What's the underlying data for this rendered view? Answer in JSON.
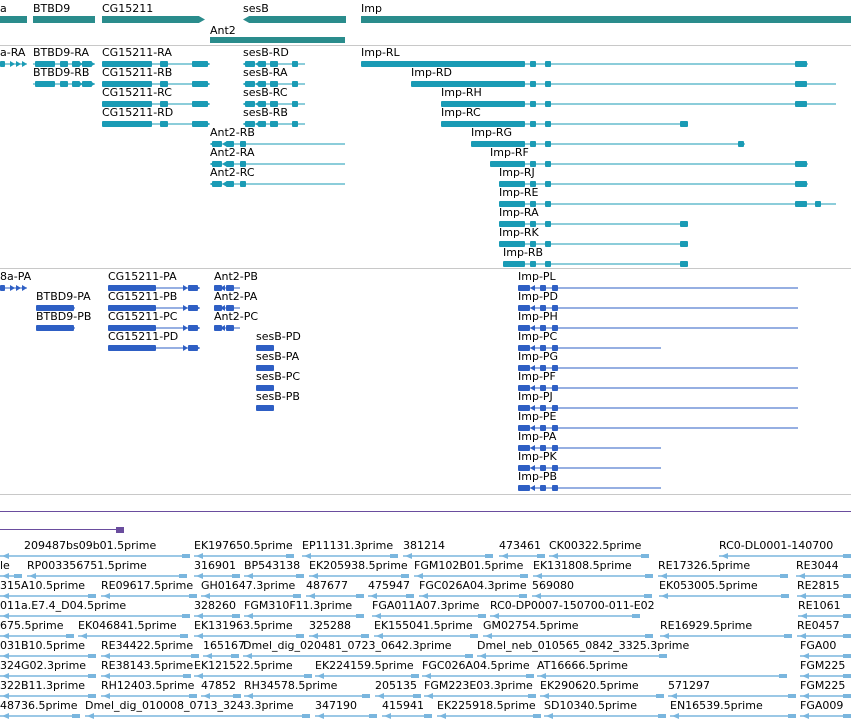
{
  "colors": {
    "gene": "#2a8c8c",
    "transcript": "#1a9bb5",
    "protein": "#2e5fc4",
    "range": "#6a4d9e",
    "est": "#7ab6de",
    "separator": "#c8c8c8"
  },
  "gene_track": {
    "labels": [
      "a",
      "BTBD9",
      "CG15211",
      "sesB",
      "Imp",
      "Ant2"
    ]
  },
  "transcript_track": {
    "labels": [
      "a-RA",
      "BTBD9-RA",
      "BTBD9-RB",
      "CG15211-RA",
      "CG15211-RB",
      "CG15211-RC",
      "CG15211-RD",
      "sesB-RD",
      "sesB-RA",
      "sesB-RC",
      "sesB-RB",
      "Ant2-RB",
      "Ant2-RA",
      "Ant2-RC",
      "Imp-RL",
      "Imp-RD",
      "Imp-RH",
      "Imp-RC",
      "Imp-RG",
      "Imp-RF",
      "Imp-RJ",
      "Imp-RE",
      "Imp-RA",
      "Imp-RK",
      "Imp-RB"
    ]
  },
  "protein_track": {
    "labels": [
      "8a-PA",
      "BTBD9-PA",
      "BTBD9-PB",
      "CG15211-PA",
      "CG15211-PB",
      "CG15211-PC",
      "CG15211-PD",
      "Ant2-PB",
      "Ant2-PA",
      "Ant2-PC",
      "sesB-PD",
      "sesB-PA",
      "sesB-PC",
      "sesB-PB",
      "Imp-PL",
      "Imp-PD",
      "Imp-PH",
      "Imp-PC",
      "Imp-PG",
      "Imp-PF",
      "Imp-PJ",
      "Imp-PE",
      "Imp-PA",
      "Imp-PK",
      "Imp-PB"
    ]
  },
  "est_track": {
    "labels": [
      "209487bs09b01.5prime",
      "EK197650.5prime",
      "EP11131.3prime",
      "381214",
      "473461",
      "CK00322.5prime",
      "RC0-DL0001-140700",
      "le",
      "RP003356751.5prime",
      "316901",
      "BP543138",
      "EK205938.5prime",
      "FGM102B01.5prime",
      "EK131808.5prime",
      "RE17326.5prime",
      "RE3044",
      "315A10.5prime",
      "RE09617.5prime",
      "GH01647.3prime",
      "487677",
      "475947",
      "FGC026A04.3prime",
      "569080",
      "EK053005.5prime",
      "RE2815",
      "011a.E7.4_D04.5prime",
      "328260",
      "FGM310F11.3prime",
      "FGA011A07.3prime",
      "RC0-DP0007-150700-011-E02",
      "RE1061",
      "675.5prime",
      "EK046841.5prime",
      "EK131963.5prime",
      "325288",
      "EK155041.5prime",
      "GM02754.5prime",
      "RE16929.5prime",
      "RE0457",
      "031B10.5prime",
      "RE34422.5prime",
      "165167",
      "Dmel_dig_020481_0723_0642.3prime",
      "Dmel_neb_010565_0842_3325.3prime",
      "FGA00",
      "324G02.3prime",
      "RE38143.5prime",
      "EK121522.5prime",
      "EK224159.5prime",
      "FGC026A04.5prime",
      "AT16666.5prime",
      "FGM225",
      "322B11.3prime",
      "RH12403.5prime",
      "47852",
      "RH34578.5prime",
      "205135",
      "FGM223E03.3prime",
      "EK290620.5prime",
      "571297",
      "FGM225",
      "48736.5prime",
      "Dmel_dig_010008_0713_3243.3prime",
      "347190",
      "415941",
      "EK225918.5prime",
      "SD10340.5prime",
      "EN16539.5prime",
      "FGA009"
    ]
  }
}
